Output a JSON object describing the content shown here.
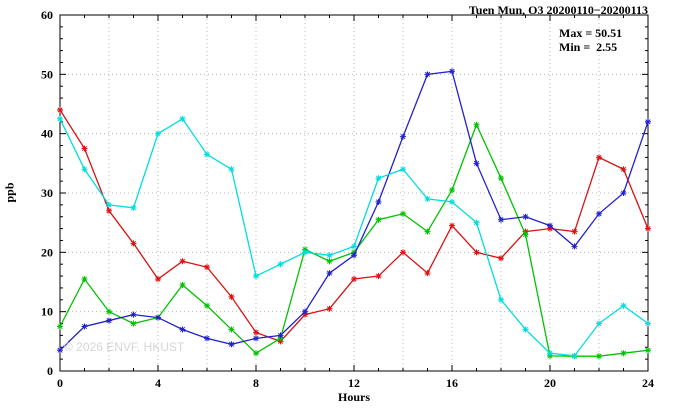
{
  "chart_data": {
    "type": "line",
    "title": "Tuen Mun, O3 20200110−20200113",
    "annotations": [
      "Max = 50.51",
      "Min =  2.55"
    ],
    "xlabel": "Hours",
    "ylabel": "ppb",
    "watermark": "© 2026 ENVF, HKUST",
    "xlim": [
      0,
      24
    ],
    "ylim": [
      0,
      60
    ],
    "xticks": [
      0,
      4,
      8,
      12,
      16,
      20,
      24
    ],
    "yticks": [
      0,
      10,
      20,
      30,
      40,
      50,
      60
    ],
    "grid": true,
    "legend": "none",
    "x": [
      0,
      1,
      2,
      3,
      4,
      5,
      6,
      7,
      8,
      9,
      10,
      11,
      12,
      13,
      14,
      15,
      16,
      17,
      18,
      19,
      20,
      21,
      22,
      23,
      24
    ],
    "series": [
      {
        "name": "day1-red",
        "color": "#dd1111",
        "values": [
          44,
          37.5,
          27,
          21.5,
          15.5,
          18.5,
          17.5,
          12.5,
          6.5,
          5,
          9.5,
          10.5,
          15.5,
          16,
          20,
          16.5,
          24.5,
          20,
          19,
          23.5,
          24,
          23.5,
          36,
          34,
          24
        ]
      },
      {
        "name": "day2-green",
        "color": "#00c400",
        "values": [
          7.5,
          15.5,
          10,
          8,
          9,
          14.5,
          11,
          7,
          3,
          5.5,
          20.5,
          18.5,
          20,
          25.5,
          26.5,
          23.5,
          30.5,
          41.5,
          32.5,
          23,
          2.55,
          2.5,
          2.5,
          3,
          3.5
        ]
      },
      {
        "name": "day3-blue",
        "color": "#2222cc",
        "values": [
          3.5,
          7.5,
          8.5,
          9.5,
          9,
          7,
          5.5,
          4.5,
          5.5,
          6,
          10,
          16.5,
          19.5,
          28.5,
          39.5,
          50,
          50.51,
          35,
          25.5,
          26,
          24.5,
          21,
          26.5,
          30,
          42
        ]
      },
      {
        "name": "day4-cyan",
        "color": "#00dede",
        "values": [
          42.5,
          34,
          28,
          27.5,
          40,
          42.5,
          36.5,
          34,
          16,
          18,
          20,
          19.5,
          21,
          32.5,
          34,
          29,
          28.5,
          25,
          12,
          7,
          3,
          2.55,
          8,
          11,
          8
        ]
      }
    ]
  }
}
